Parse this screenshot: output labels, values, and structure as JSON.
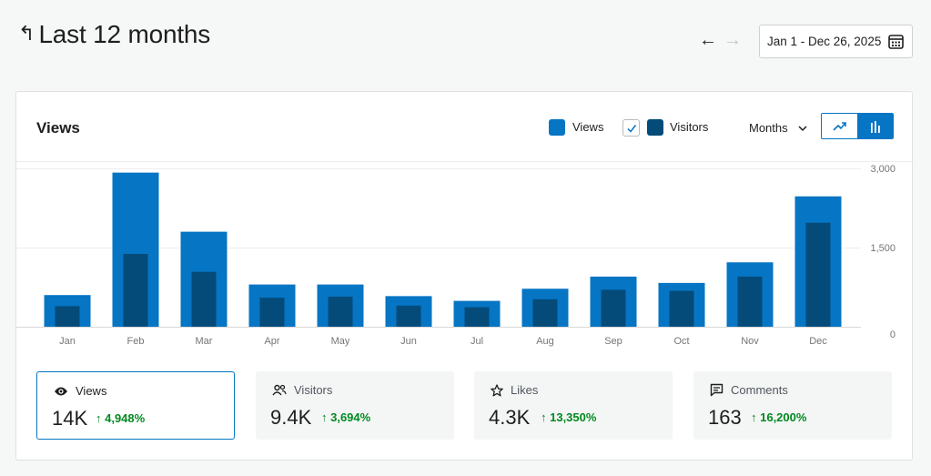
{
  "header": {
    "back_glyph": "↰",
    "title": "Last 12 months"
  },
  "nav": {
    "prev_glyph": "←",
    "next_glyph": "→",
    "date_range": "Jan 1 - Dec 26, 2025"
  },
  "card": {
    "title": "Views",
    "legend": {
      "views_label": "Views",
      "visitors_label": "Visitors",
      "views_color": "#0675c4",
      "visitors_color": "#044b7a",
      "visitors_checked": true
    },
    "period": "Months",
    "chart_type_active": "bar"
  },
  "chart_data": {
    "type": "bar",
    "categories": [
      "Jan",
      "Feb",
      "Mar",
      "Apr",
      "May",
      "Jun",
      "Jul",
      "Aug",
      "Sep",
      "Oct",
      "Nov",
      "Dec"
    ],
    "series": [
      {
        "name": "Views",
        "values": [
          600,
          2920,
          1800,
          800,
          800,
          580,
          490,
          720,
          950,
          830,
          1220,
          2470
        ]
      },
      {
        "name": "Visitors",
        "values": [
          390,
          1380,
          1040,
          550,
          570,
          400,
          370,
          520,
          700,
          680,
          950,
          1970
        ]
      }
    ],
    "ylim": [
      0,
      3000
    ],
    "y_ticks": [
      "3,000",
      "1,500",
      "0"
    ],
    "y_tick_values": [
      3000,
      1500,
      0
    ],
    "grid": true
  },
  "stats": [
    {
      "icon": "eye-icon",
      "label": "Views",
      "value": "14K",
      "change": "↑ 4,948%"
    },
    {
      "icon": "people-icon",
      "label": "Visitors",
      "value": "9.4K",
      "change": "↑ 3,694%"
    },
    {
      "icon": "star-icon",
      "label": "Likes",
      "value": "4.3K",
      "change": "↑ 13,350%"
    },
    {
      "icon": "comment-icon",
      "label": "Comments",
      "value": "163",
      "change": "↑ 16,200%"
    }
  ]
}
